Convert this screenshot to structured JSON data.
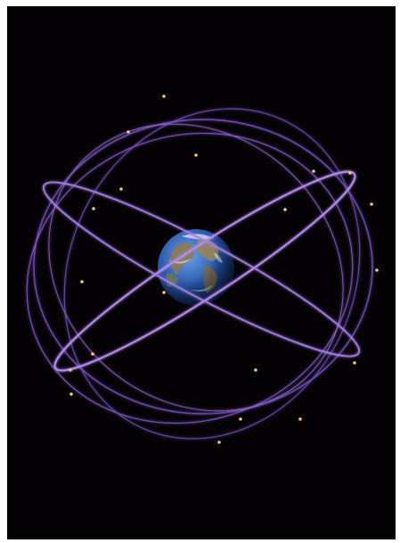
{
  "scene": {
    "subject": "earth-with-satellite-orbits",
    "colors": {
      "background": "#050205",
      "orbit": "#8a5fd6",
      "orbit_glow": "#c9a6ff",
      "satellite": "#f1c58a",
      "ocean": "#1f4fa8",
      "land": "#8c7a55",
      "cloud": "#e8eef8"
    },
    "icons": {
      "earth": "earth-globe-icon",
      "satellite": "satellite-dot-icon"
    }
  }
}
